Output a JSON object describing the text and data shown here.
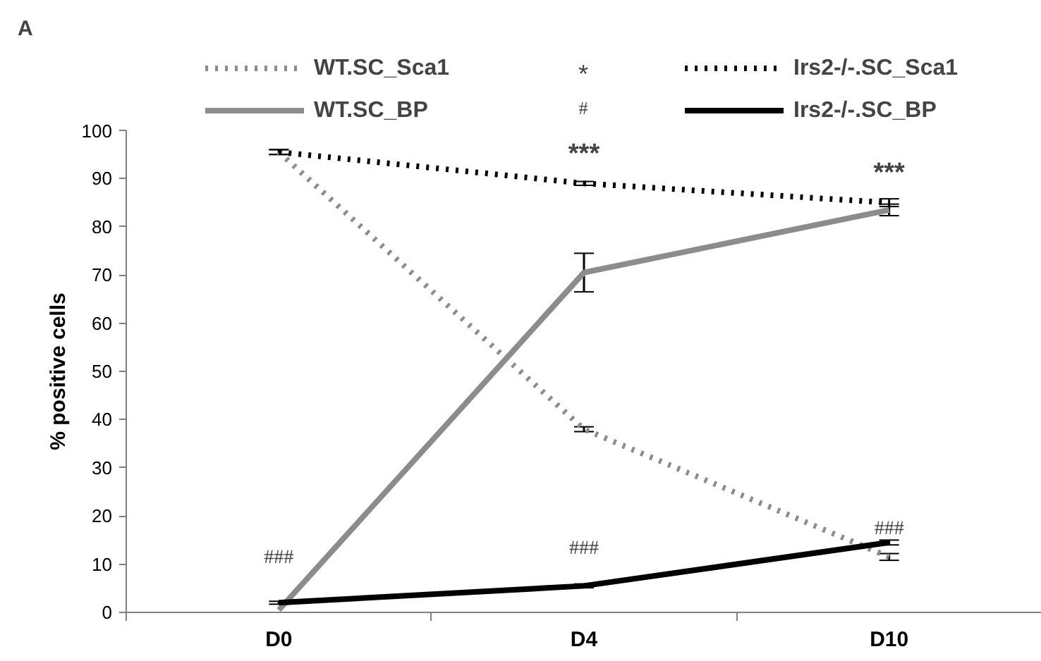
{
  "chart_data": {
    "type": "line",
    "categories": [
      "D0",
      "D4",
      "D10"
    ],
    "ylabel": "% positive cells",
    "ylim": [
      0,
      100
    ],
    "yticks": [
      0,
      10,
      20,
      30,
      40,
      50,
      60,
      70,
      80,
      90,
      100
    ],
    "grid": false,
    "legend": "top",
    "marker": "none",
    "series": [
      {
        "name": "WT.SC_Sca1",
        "color": "#8c8c8c",
        "line_style": "dotted",
        "values": [
          95.5,
          38,
          11.5
        ],
        "errors": [
          0.5,
          0.5,
          0.7
        ]
      },
      {
        "name": "Irs2-/-.SC_Sca1",
        "color": "#000000",
        "line_style": "dotted",
        "values": [
          95.5,
          89,
          85
        ],
        "errors": [
          0.5,
          0.4,
          0.8
        ]
      },
      {
        "name": "WT.SC_BP",
        "color": "#8c8c8c",
        "line_style": "solid",
        "values": [
          0.5,
          70.5,
          83.5
        ],
        "errors": [
          null,
          4,
          1.2
        ]
      },
      {
        "name": "Irs2-/-.SC_BP",
        "color": "#000000",
        "line_style": "solid",
        "values": [
          2,
          5.5,
          14.5
        ],
        "errors": [
          0.3,
          0.4,
          0.5
        ]
      }
    ],
    "annotations": [
      "A",
      "*",
      "#",
      "***",
      "***",
      "###",
      "###",
      "###"
    ]
  }
}
